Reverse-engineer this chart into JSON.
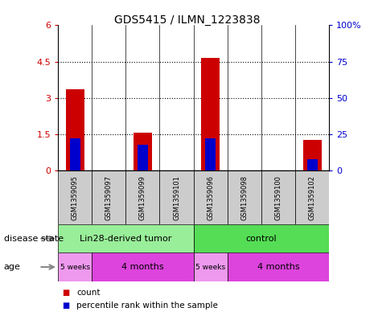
{
  "title": "GDS5415 / ILMN_1223838",
  "samples": [
    "GSM1359095",
    "GSM1359097",
    "GSM1359099",
    "GSM1359101",
    "GSM1359096",
    "GSM1359098",
    "GSM1359100",
    "GSM1359102"
  ],
  "count_values": [
    3.35,
    0.0,
    1.58,
    0.0,
    4.65,
    0.0,
    0.0,
    1.28
  ],
  "percentile_values": [
    22.0,
    0.0,
    18.0,
    0.0,
    22.0,
    0.0,
    0.0,
    8.0
  ],
  "ylim_left": [
    0,
    6
  ],
  "ylim_right": [
    0,
    100
  ],
  "yticks_left": [
    0,
    1.5,
    3.0,
    4.5,
    6.0
  ],
  "ytick_labels_left": [
    "0",
    "1.5",
    "3",
    "4.5",
    "6"
  ],
  "yticks_right": [
    0,
    25,
    50,
    75,
    100
  ],
  "ytick_labels_right": [
    "0",
    "25",
    "50",
    "75",
    "100%"
  ],
  "bar_color": "#cc0000",
  "percentile_color": "#0000cc",
  "bar_width": 0.55,
  "disease_state_groups": [
    {
      "label": "Lin28-derived tumor",
      "start": 0,
      "end": 3,
      "color": "#99ee99"
    },
    {
      "label": "control",
      "start": 4,
      "end": 7,
      "color": "#55dd55"
    }
  ],
  "age_groups": [
    {
      "label": "5 weeks",
      "start": 0,
      "end": 0,
      "color": "#ee99ee"
    },
    {
      "label": "4 months",
      "start": 1,
      "end": 3,
      "color": "#dd44dd"
    },
    {
      "label": "5 weeks",
      "start": 4,
      "end": 4,
      "color": "#ee99ee"
    },
    {
      "label": "4 months",
      "start": 5,
      "end": 7,
      "color": "#dd44dd"
    }
  ],
  "disease_state_label": "disease state",
  "age_label": "age",
  "legend_count_label": "count",
  "legend_percentile_label": "percentile rank within the sample",
  "axis_label_color_left": "#cc0000",
  "axis_label_color_right": "#0000cc",
  "sample_box_color": "#cccccc",
  "dotted_line_values": [
    1.5,
    3.0,
    4.5
  ]
}
